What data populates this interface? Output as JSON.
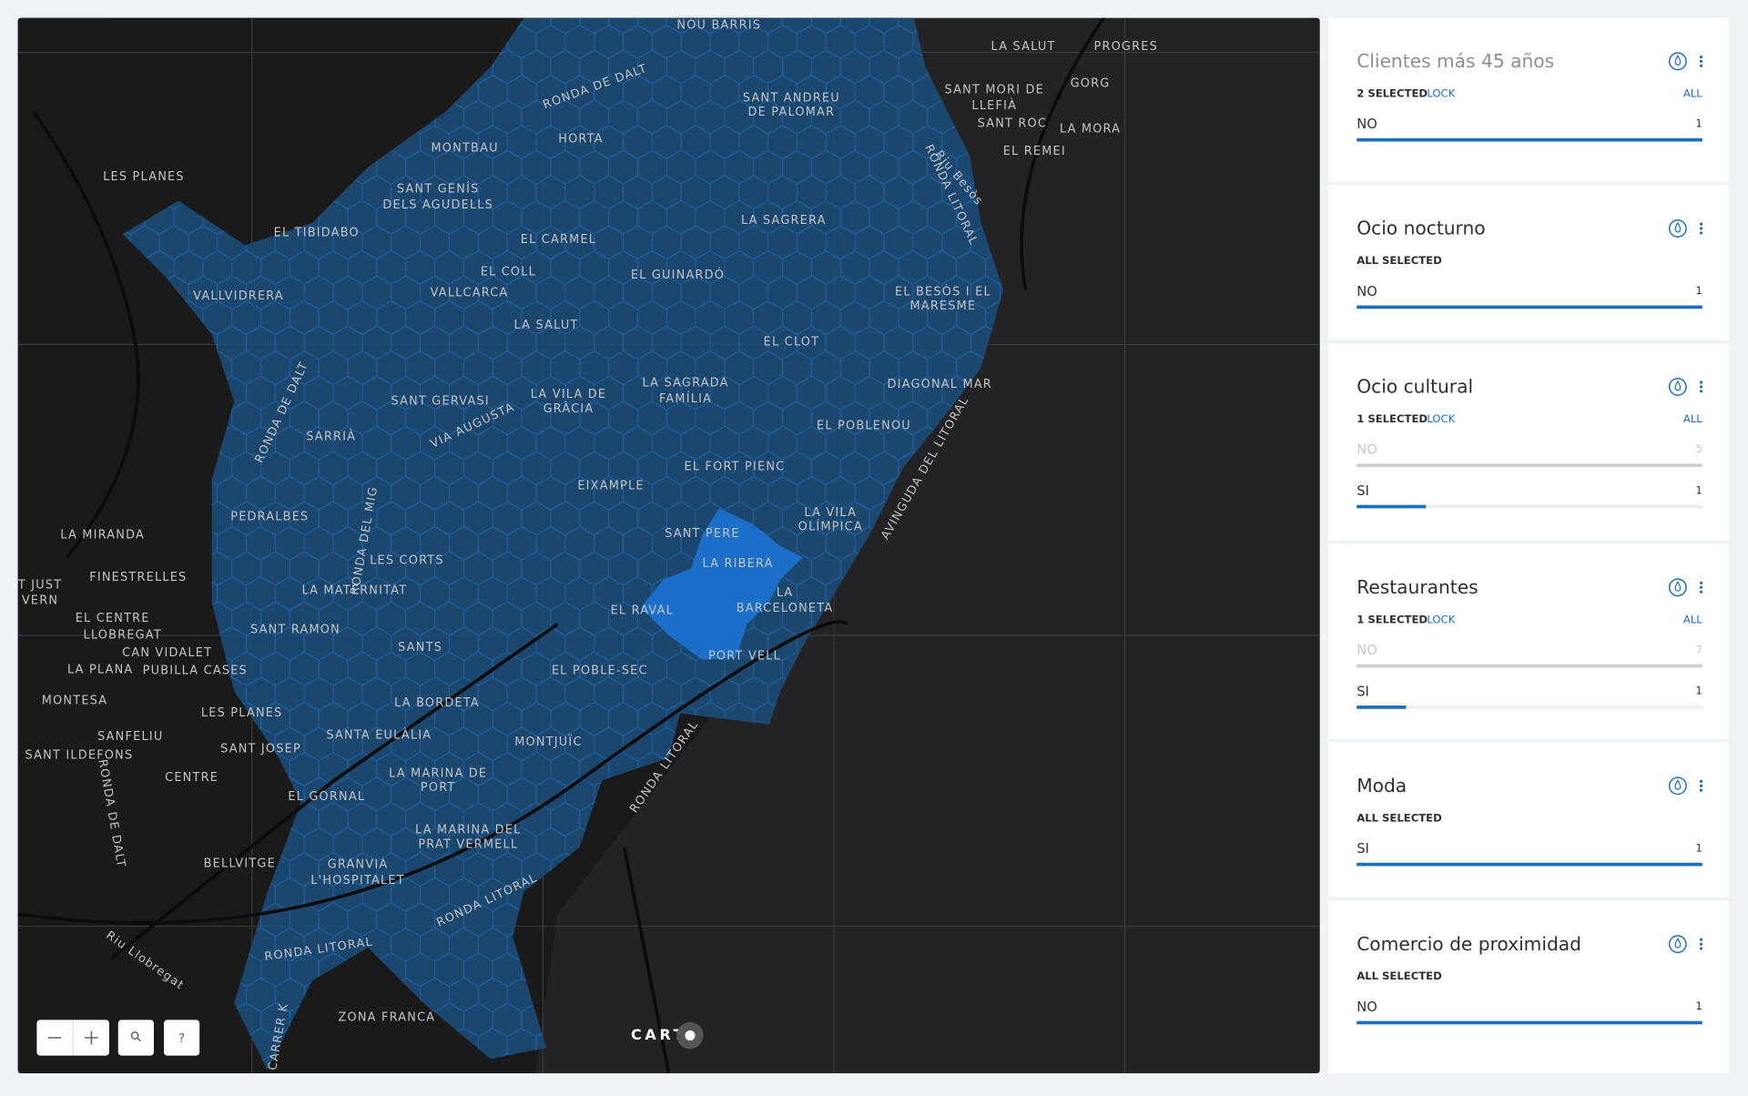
{
  "map": {
    "labels": [
      "NOU BARRIS",
      "LA SALUT",
      "PROGRES",
      "GORG",
      "SANT MORI DE",
      "LLEFIÀ",
      "SANT ROC",
      "LA MORA",
      "EL REMEI",
      "RONDA DE DALT",
      "SANT ANDREU",
      "DE PALOMAR",
      "MONTBAU",
      "HORTA",
      "LES PLANES",
      "SANT GENÍS",
      "DELS AGUDELLS",
      "EL TIBIDABO",
      "EL CARMEL",
      "LA SAGRERA",
      "EL COLL",
      "EL GUINARDÓ",
      "VALLVIDRERA",
      "VALLCARCA",
      "EL BESÒS I EL",
      "MARESME",
      "LA SALUT",
      "EL CLOT",
      "SANT GERVASI",
      "LA VILA DE",
      "GRÀCIA",
      "LA SAGRADA",
      "FAMÍLIA",
      "DIAGONAL MAR",
      "EL POBLENOU",
      "SARRIÀ",
      "VIA AUGUSTA",
      "RONDA DE DALT",
      "EL FORT PIENC",
      "EIXAMPLE",
      "LA VILA",
      "OLÍMPICA",
      "PEDRALBES",
      "RONDA DEL MIG",
      "SANT PERE",
      "LA MIRANDA",
      "LA RIBERA",
      "LES CORTS",
      "FINESTRELLES",
      "LA",
      "BARCELONETA",
      "LA MATERNITAT",
      "T JUST",
      "VERN",
      "EL RAVAL",
      "EL CENTRE",
      "LLOBREGAT",
      "CAN VIDALET",
      "SANT RAMON",
      "SANTS",
      "PORT VELL",
      "LA PLANA",
      "PUBILLA CASES",
      "EL POBLE-SEC",
      "MONTESA",
      "LA BORDETA",
      "LES PLANES",
      "SANFELIU",
      "SANTA EULÀLIA",
      "MONTJUÏC",
      "SANT JOSEP",
      "SANT ILDEFONS",
      "CENTRE",
      "LA MARINA DE",
      "PORT",
      "RONDA LITORAL",
      "EL GORNAL",
      "LA MARINA DEL",
      "PRAT VERMELL",
      "BELLVITGE",
      "GRANVIA",
      "L'HOSPITALET",
      "RONDA LITORAL",
      "RONDA LITORAL",
      "ZONA FRANCA",
      "RONDA LITORAL",
      "AVINGUDA DEL LITORAL",
      "Riu Besòs",
      "Riu Llobregat",
      "CARRER K",
      "RONDA DE DALT"
    ],
    "logo": "CART",
    "help": "?"
  },
  "sidebar": {
    "widgets": [
      {
        "title": "Clientes más 45 años",
        "status": "2 SELECTED",
        "lock": "LOCK",
        "all": "ALL",
        "rows": [
          {
            "label": "NO",
            "value": 1,
            "color": "#1a6ebf"
          }
        ]
      },
      {
        "title": "Ocio nocturno",
        "status": "ALL SELECTED",
        "rows": [
          {
            "label": "NO",
            "value": 1,
            "color": "#1a6ebf"
          }
        ]
      },
      {
        "title": "Ocio cultural",
        "status": "1 SELECTED",
        "lock": "LOCK",
        "all": "ALL",
        "rows": [
          {
            "label": "NO",
            "value": 5,
            "color": "#cfcfcf"
          },
          {
            "label": "SI",
            "value": 1,
            "color": "#1a6ebf"
          }
        ]
      },
      {
        "title": "Restaurantes",
        "status": "1 SELECTED",
        "lock": "LOCK",
        "all": "ALL",
        "rows": [
          {
            "label": "NO",
            "value": 7,
            "color": "#cfcfcf"
          },
          {
            "label": "SI",
            "value": 1,
            "color": "#1a6ebf"
          }
        ]
      },
      {
        "title": "Moda",
        "status": "ALL SELECTED",
        "rows": [
          {
            "label": "SI",
            "value": 1,
            "color": "#1a6ebf"
          }
        ]
      },
      {
        "title": "Comercio de proximidad",
        "status": "ALL SELECTED",
        "rows": [
          {
            "label": "NO",
            "value": 1,
            "color": "#1a6ebf"
          }
        ]
      }
    ]
  }
}
